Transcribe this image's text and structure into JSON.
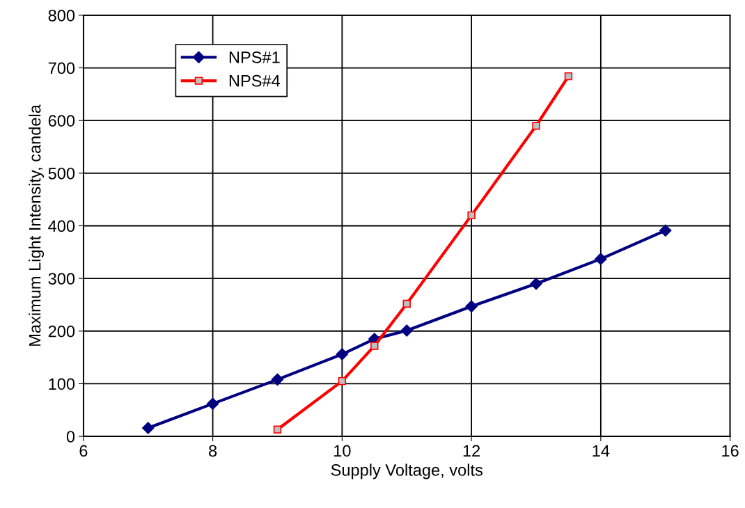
{
  "chart_data": {
    "type": "line",
    "xlabel": "Supply Voltage, volts",
    "ylabel": "Maximum Light Intensity, candela",
    "xlim": [
      6,
      16
    ],
    "xticks": [
      6,
      8,
      10,
      12,
      14,
      16
    ],
    "ylim": [
      0,
      800
    ],
    "yticks": [
      0,
      100,
      200,
      300,
      400,
      500,
      600,
      700,
      800
    ],
    "grid": true,
    "legend": "top left",
    "line_style": "solid",
    "series": [
      {
        "name": "NPS#1",
        "color": "#000080",
        "marker": "diamond",
        "x": [
          7,
          8,
          9,
          10,
          10.5,
          11,
          12,
          13,
          14,
          15
        ],
        "values": [
          16,
          62,
          108,
          156,
          185,
          201,
          247,
          290,
          337,
          391
        ]
      },
      {
        "name": "NPS#4",
        "color": "#ff0000",
        "marker": "square",
        "x": [
          9,
          10,
          10.5,
          11,
          12,
          13,
          13.5
        ],
        "values": [
          13,
          105,
          172,
          252,
          420,
          590,
          684
        ]
      }
    ]
  }
}
